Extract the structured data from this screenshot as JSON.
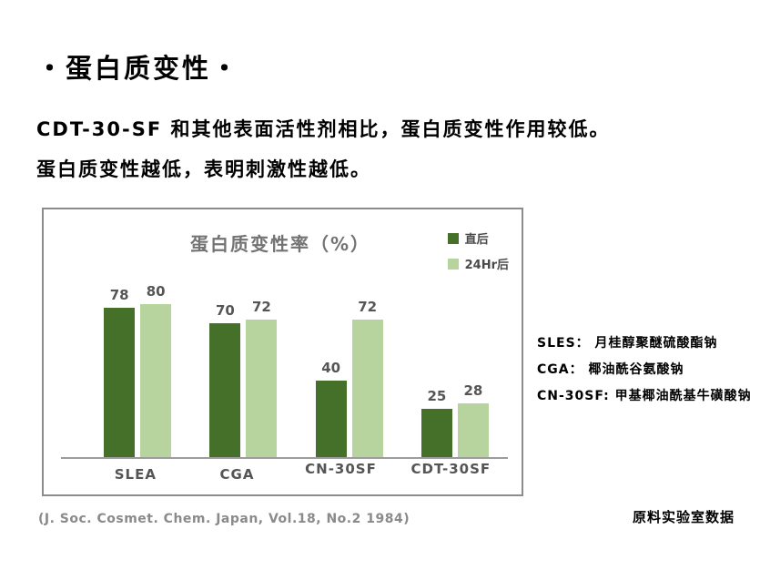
{
  "slide": {
    "title": "・蛋白质变性・",
    "line1": "CDT-30-SF 和其他表面活性剂相比，蛋白质变性作用较低。",
    "line2": "蛋白质变性越低，表明刺激性越低。",
    "citation": "(J. Soc. Cosmet. Chem. Japan, Vol.18, No.2 1984)",
    "footer_right": "原料实验室数据"
  },
  "chart_data": {
    "type": "bar",
    "title": "蛋白质变性率（%）",
    "categories": [
      "SLEA",
      "CGA",
      "CN-30SF",
      "CDT-30SF"
    ],
    "series": [
      {
        "name": "直后",
        "color": "#44702a",
        "values": [
          78,
          70,
          40,
          25
        ]
      },
      {
        "name": "24Hr后",
        "color": "#b7d49e",
        "values": [
          80,
          72,
          72,
          28
        ]
      }
    ],
    "ylim": [
      0,
      90
    ],
    "grid": false,
    "legend_position": "top-right",
    "value_labels": true,
    "axis_color": "#9c9c9c"
  },
  "annotations": {
    "items": [
      "SLES： 月桂醇聚醚硫酸酯钠",
      "CGA： 椰油酰谷氨酸钠",
      "CN-30SF: 甲基椰油酰基牛磺酸钠"
    ]
  }
}
